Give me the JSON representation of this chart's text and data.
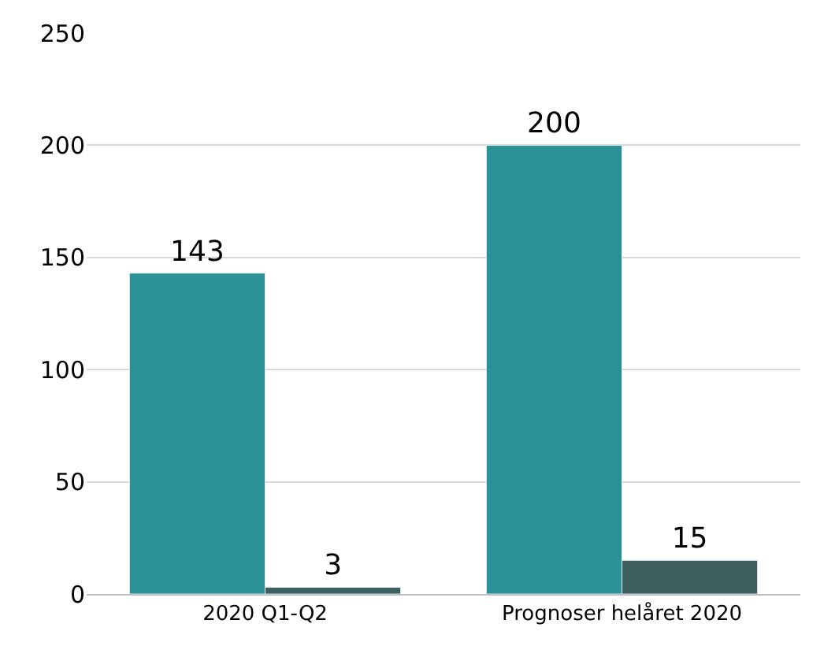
{
  "chart_data": {
    "type": "bar",
    "categories": [
      "2020 Q1-Q2",
      "Prognoser helåret 2020"
    ],
    "series": [
      {
        "color": "#2a9296",
        "values": [
          143,
          200
        ]
      },
      {
        "color": "#3d5f60",
        "values": [
          3,
          15
        ]
      }
    ],
    "ylim": [
      0,
      250
    ],
    "yticks": [
      0,
      50,
      100,
      150,
      200,
      250
    ],
    "grid": "y",
    "data_labels": true
  }
}
